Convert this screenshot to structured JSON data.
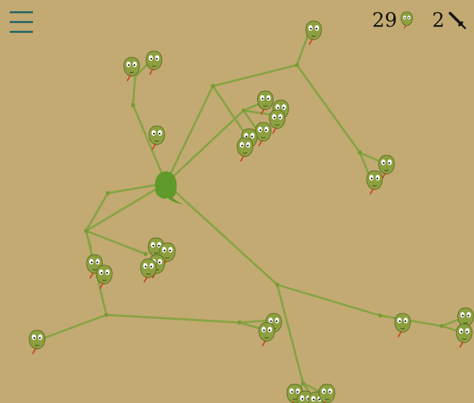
{
  "hud": {
    "snake_count": "29",
    "sword_count": "2",
    "snake_icon": "snake-head-icon",
    "sword_icon": "sword-icon"
  },
  "menu_icon": "hamburger-menu-icon",
  "colors": {
    "background": "#c2aa72",
    "vine": "#87a344",
    "node": "#7a9a35",
    "creature": "#5f9a2a",
    "snake_body": "#8da040",
    "snake_outline": "#5d6e22",
    "tongue": "#c84a26"
  }
}
